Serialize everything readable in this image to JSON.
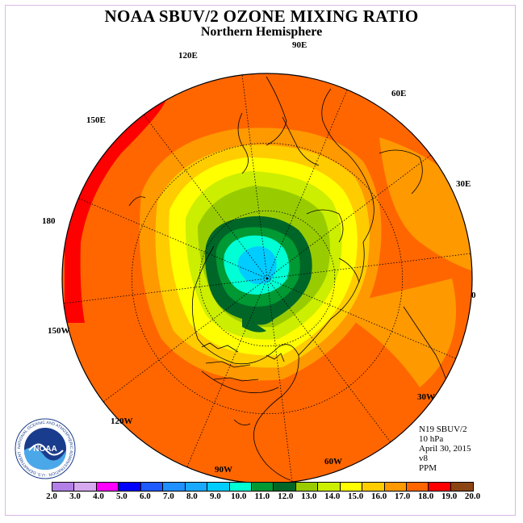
{
  "title": "NOAA SBUV/2 OZONE MIXING RATIO",
  "subtitle": "Northern Hemisphere",
  "longitude_labels": {
    "e90": "90E",
    "e60": "60E",
    "e30": "30E",
    "zero": "0",
    "w30": "30W",
    "w60": "60W",
    "w90": "90W",
    "w120": "120W",
    "w150": "150W",
    "d180": "180",
    "e150": "150E",
    "e120": "120E"
  },
  "info": {
    "instrument": "N19 SBUV/2",
    "pressure": "10 hPa",
    "date": "April 30, 2015",
    "version": "v8",
    "units": "PPM"
  },
  "logo": {
    "text": "NOAA",
    "ring_text": "NATIONAL OCEANIC AND ATMOSPHERIC ADMINISTRATION · U.S. DEPARTMENT OF COMMERCE"
  },
  "colorbar": {
    "labels": [
      "2.0",
      "3.0",
      "4.0",
      "5.0",
      "6.0",
      "7.0",
      "8.0",
      "9.0",
      "10.0",
      "11.0",
      "12.0",
      "13.0",
      "14.0",
      "15.0",
      "16.0",
      "17.0",
      "18.0",
      "19.0",
      "20.0"
    ],
    "colors": [
      "#b27fe6",
      "#d6a8f0",
      "#ff00ff",
      "#0000ff",
      "#1e5aff",
      "#1e90ff",
      "#19aaff",
      "#00ccff",
      "#00ffd5",
      "#009933",
      "#006628",
      "#99cc00",
      "#ccee00",
      "#ffff00",
      "#ffcc00",
      "#ff9900",
      "#ff6600",
      "#ff0000",
      "#8b4513"
    ]
  },
  "map_colors": {
    "c18": "#ff6600",
    "c17": "#ff9900",
    "c16": "#ffcc00",
    "c15": "#ffff00",
    "c14": "#ccee00",
    "c13": "#99cc00",
    "c12": "#006628",
    "c11": "#009933",
    "c10": "#00ffd5",
    "c9": "#00ccff",
    "c19": "#ff0000"
  }
}
